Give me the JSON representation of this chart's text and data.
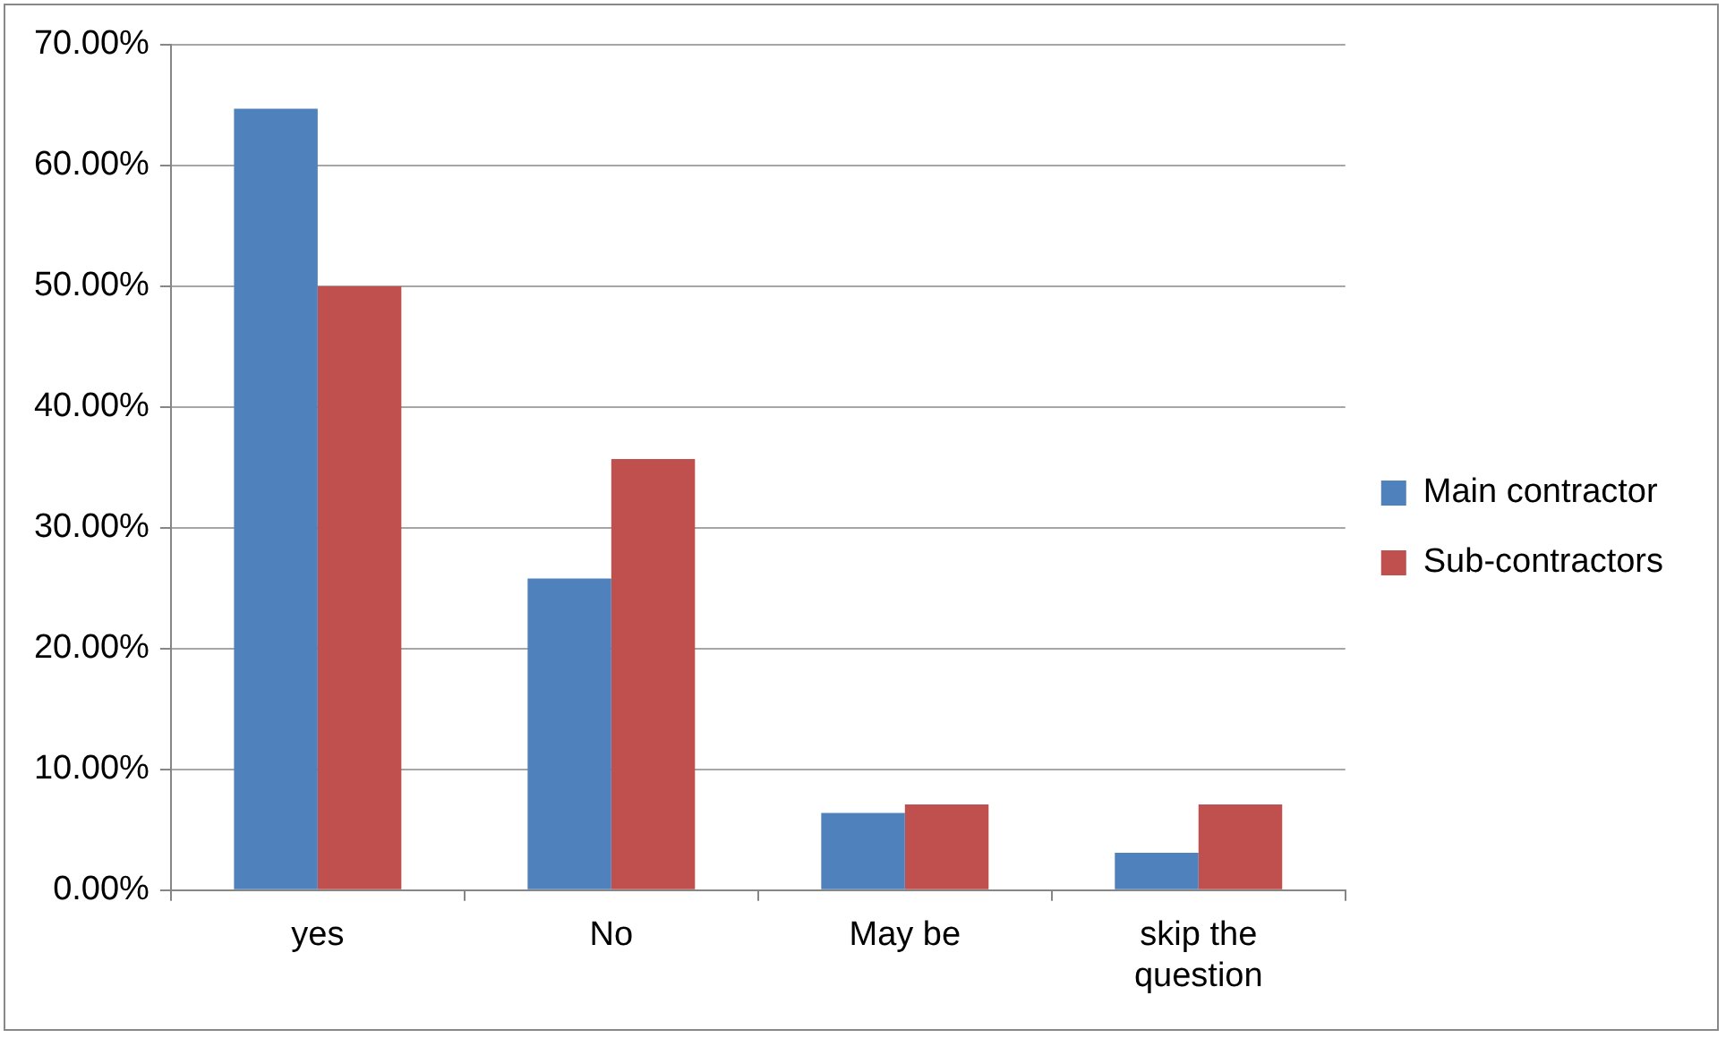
{
  "chart_data": {
    "type": "bar",
    "categories": [
      "yes",
      "No",
      "May be",
      "skip the question"
    ],
    "series": [
      {
        "name": "Main contractor",
        "color": "#4f81bd",
        "values": [
          64.7,
          25.8,
          6.4,
          3.1
        ]
      },
      {
        "name": "Sub-contractors",
        "color": "#c0504d",
        "values": [
          50.0,
          35.7,
          7.1,
          7.1
        ]
      }
    ],
    "ylim": [
      0,
      70
    ],
    "yticks": [
      {
        "value": 0,
        "label": "0.00%"
      },
      {
        "value": 10,
        "label": "10.00%"
      },
      {
        "value": 20,
        "label": "20.00%"
      },
      {
        "value": 30,
        "label": "30.00%"
      },
      {
        "value": 40,
        "label": "40.00%"
      },
      {
        "value": 50,
        "label": "50.00%"
      },
      {
        "value": 60,
        "label": "60.00%"
      },
      {
        "value": 70,
        "label": "70.00%"
      }
    ],
    "grid": "y",
    "legend": "right"
  }
}
